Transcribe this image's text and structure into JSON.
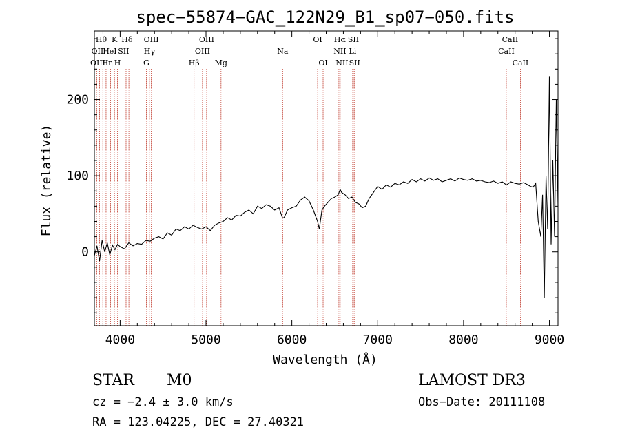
{
  "chart_data": {
    "type": "line",
    "title": "spec−55874−GAC_122N29_B1_sp07−050.fits",
    "xlabel": "Wavelength (Å)",
    "ylabel": "Flux (relative)",
    "xlim": [
      3700,
      9100
    ],
    "ylim": [
      -97,
      290
    ],
    "xticks": [
      4000,
      5000,
      6000,
      7000,
      8000,
      9000
    ],
    "xtick_labels": [
      "4000",
      "5000",
      "6000",
      "7000",
      "8000",
      "9000"
    ],
    "yticks": [
      0,
      100,
      200
    ],
    "ytick_labels": [
      "0",
      "100",
      "200"
    ],
    "series": [
      {
        "name": "spectrum",
        "x": [
          3700,
          3730,
          3760,
          3790,
          3820,
          3850,
          3880,
          3910,
          3940,
          3970,
          4000,
          4050,
          4100,
          4150,
          4200,
          4250,
          4300,
          4350,
          4400,
          4450,
          4500,
          4550,
          4600,
          4650,
          4700,
          4750,
          4800,
          4850,
          4900,
          4950,
          5000,
          5050,
          5100,
          5150,
          5200,
          5250,
          5300,
          5350,
          5400,
          5450,
          5500,
          5550,
          5600,
          5650,
          5700,
          5750,
          5800,
          5850,
          5890,
          5910,
          5950,
          6000,
          6050,
          6100,
          6150,
          6200,
          6250,
          6300,
          6320,
          6350,
          6380,
          6420,
          6460,
          6500,
          6540,
          6563,
          6580,
          6620,
          6660,
          6700,
          6740,
          6780,
          6820,
          6860,
          6900,
          6950,
          7000,
          7050,
          7100,
          7150,
          7200,
          7250,
          7300,
          7350,
          7400,
          7450,
          7500,
          7550,
          7600,
          7650,
          7700,
          7750,
          7800,
          7850,
          7900,
          7950,
          8000,
          8050,
          8100,
          8150,
          8200,
          8250,
          8300,
          8350,
          8400,
          8450,
          8500,
          8550,
          8600,
          8650,
          8700,
          8750,
          8780,
          8810,
          8840,
          8870,
          8900,
          8920,
          8940,
          8960,
          8980,
          9000,
          9020,
          9040,
          9060,
          9080,
          9100
        ],
        "y": [
          -5,
          8,
          -12,
          15,
          0,
          12,
          -4,
          9,
          3,
          10,
          7,
          4,
          12,
          8,
          11,
          10,
          15,
          14,
          18,
          20,
          17,
          25,
          22,
          30,
          28,
          33,
          30,
          35,
          32,
          30,
          33,
          28,
          35,
          38,
          40,
          45,
          42,
          48,
          47,
          52,
          55,
          50,
          60,
          57,
          62,
          60,
          55,
          58,
          45,
          45,
          55,
          58,
          60,
          68,
          72,
          67,
          55,
          40,
          30,
          55,
          60,
          65,
          70,
          72,
          75,
          82,
          78,
          75,
          70,
          72,
          65,
          63,
          58,
          60,
          70,
          78,
          86,
          82,
          88,
          85,
          90,
          88,
          92,
          90,
          95,
          92,
          96,
          93,
          97,
          94,
          96,
          92,
          94,
          96,
          93,
          97,
          95,
          94,
          96,
          93,
          94,
          92,
          91,
          93,
          90,
          92,
          88,
          92,
          90,
          89,
          91,
          88,
          86,
          85,
          90,
          40,
          20,
          75,
          -60,
          100,
          30,
          230,
          10,
          120,
          20,
          200,
          60
        ]
      }
    ],
    "lines": [
      {
        "label": "Hθ",
        "wl": 3798
      },
      {
        "label": "OII",
        "wl": 3727
      },
      {
        "label": "OIII",
        "wl": 3760
      },
      {
        "label": "K",
        "wl": 3934
      },
      {
        "label": "HeI",
        "wl": 3889
      },
      {
        "label": "Hη",
        "wl": 3836
      },
      {
        "label": "H",
        "wl": 3969
      },
      {
        "label": "SII",
        "wl": 4069
      },
      {
        "label": "Hδ",
        "wl": 4102
      },
      {
        "label": "OIII",
        "wl": 4363
      },
      {
        "label": "Hγ",
        "wl": 4341
      },
      {
        "label": "G",
        "wl": 4305
      },
      {
        "label": "Hβ",
        "wl": 4861
      },
      {
        "label": "OIII",
        "wl": 4959
      },
      {
        "label": "OIII",
        "wl": 5007
      },
      {
        "label": "Mg",
        "wl": 5175
      },
      {
        "label": "Na",
        "wl": 5893
      },
      {
        "label": "OI",
        "wl": 6300
      },
      {
        "label": "OI",
        "wl": 6364
      },
      {
        "label": "Hα",
        "wl": 6563
      },
      {
        "label": "NII",
        "wl": 6548
      },
      {
        "label": "NII",
        "wl": 6584
      },
      {
        "label": "SII",
        "wl": 6717
      },
      {
        "label": "Li",
        "wl": 6708
      },
      {
        "label": "SII",
        "wl": 6731
      },
      {
        "label": "CaII",
        "wl": 8542
      },
      {
        "label": "CaII",
        "wl": 8498
      },
      {
        "label": "CaII",
        "wl": 8662
      }
    ],
    "line_label_text": [
      {
        "row": 0,
        "text": "Hθ",
        "wl": 3780
      },
      {
        "row": 0,
        "text": "K",
        "wl": 3934
      },
      {
        "row": 0,
        "text": "Hδ",
        "wl": 4080
      },
      {
        "row": 0,
        "text": "OIII",
        "wl": 4363
      },
      {
        "row": 0,
        "text": "OIII",
        "wl": 5007
      },
      {
        "row": 0,
        "text": "OI",
        "wl": 6300
      },
      {
        "row": 0,
        "text": "Hα",
        "wl": 6560
      },
      {
        "row": 0,
        "text": "SII",
        "wl": 6717
      },
      {
        "row": 0,
        "text": "CaII",
        "wl": 8542
      },
      {
        "row": 1,
        "text": "OII",
        "wl": 3735
      },
      {
        "row": 1,
        "text": "HeI",
        "wl": 3880
      },
      {
        "row": 1,
        "text": "SII",
        "wl": 4040
      },
      {
        "row": 1,
        "text": "Hγ",
        "wl": 4341
      },
      {
        "row": 1,
        "text": "OIII",
        "wl": 4959
      },
      {
        "row": 1,
        "text": "Na",
        "wl": 5893
      },
      {
        "row": 1,
        "text": "NII",
        "wl": 6560
      },
      {
        "row": 1,
        "text": "Li",
        "wl": 6708
      },
      {
        "row": 1,
        "text": "CaII",
        "wl": 8498
      },
      {
        "row": 2,
        "text": "OIII",
        "wl": 3740
      },
      {
        "row": 2,
        "text": "Hη",
        "wl": 3850
      },
      {
        "row": 2,
        "text": "H",
        "wl": 3969
      },
      {
        "row": 2,
        "text": "G",
        "wl": 4305
      },
      {
        "row": 2,
        "text": "Hβ",
        "wl": 4861
      },
      {
        "row": 2,
        "text": "Mg",
        "wl": 5175
      },
      {
        "row": 2,
        "text": "OI",
        "wl": 6364
      },
      {
        "row": 2,
        "text": "NII",
        "wl": 6584
      },
      {
        "row": 2,
        "text": "SII",
        "wl": 6731
      },
      {
        "row": 2,
        "text": "CaII",
        "wl": 8662
      }
    ]
  },
  "info": {
    "class_label": "STAR",
    "subclass": "M0",
    "survey": "LAMOST DR3",
    "cz": "cz = −2.4 ± 3.0 km/s",
    "obs_date": "Obs−Date: 20111108",
    "radec": "RA = 123.04225, DEC =  27.40321"
  },
  "colors": {
    "line": "#000000",
    "marker_lines": "#c0392b",
    "axes": "#000000"
  }
}
